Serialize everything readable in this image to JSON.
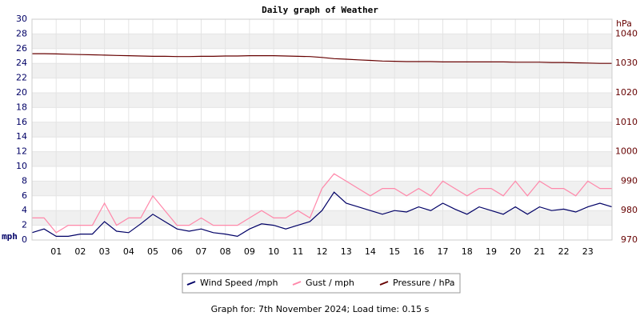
{
  "chart_data": {
    "type": "line",
    "title": "Daily graph of Weather",
    "y_label": "mph",
    "y2_label": "hPa",
    "footer": "Graph for: 7th November 2024; Load time: 0.15 s",
    "xlim": [
      0,
      24
    ],
    "xticks": [
      {
        "value": 1,
        "label": "01"
      },
      {
        "value": 2,
        "label": "02"
      },
      {
        "value": 3,
        "label": "03"
      },
      {
        "value": 4,
        "label": "04"
      },
      {
        "value": 5,
        "label": "05"
      },
      {
        "value": 6,
        "label": "06"
      },
      {
        "value": 7,
        "label": "07"
      },
      {
        "value": 8,
        "label": "08"
      },
      {
        "value": 9,
        "label": "09"
      },
      {
        "value": 10,
        "label": "10"
      },
      {
        "value": 11,
        "label": "11"
      },
      {
        "value": 12,
        "label": "12"
      },
      {
        "value": 13,
        "label": "13"
      },
      {
        "value": 14,
        "label": "14"
      },
      {
        "value": 15,
        "label": "15"
      },
      {
        "value": 16,
        "label": "16"
      },
      {
        "value": 17,
        "label": "17"
      },
      {
        "value": 18,
        "label": "18"
      },
      {
        "value": 19,
        "label": "19"
      },
      {
        "value": 20,
        "label": "20"
      },
      {
        "value": 21,
        "label": "21"
      },
      {
        "value": 22,
        "label": "22"
      },
      {
        "value": 23,
        "label": "23"
      }
    ],
    "ylim": [
      0,
      30
    ],
    "yticks": [
      0,
      2,
      4,
      6,
      8,
      10,
      12,
      14,
      16,
      18,
      20,
      22,
      24,
      26,
      28,
      30
    ],
    "y2lim": [
      970,
      1045
    ],
    "y2ticks": [
      970,
      980,
      990,
      1000,
      1010,
      1020,
      1030,
      1040
    ],
    "grid": true,
    "x": [
      0,
      0.5,
      1,
      1.5,
      2,
      2.5,
      3,
      3.5,
      4,
      4.5,
      5,
      5.5,
      6,
      6.5,
      7,
      7.5,
      8,
      8.5,
      9,
      9.5,
      10,
      10.5,
      11,
      11.5,
      12,
      12.5,
      13,
      13.5,
      14,
      14.5,
      15,
      15.5,
      16,
      16.5,
      17,
      17.5,
      18,
      18.5,
      19,
      19.5,
      20,
      20.5,
      21,
      21.5,
      22,
      22.5,
      23,
      23.5,
      24
    ],
    "series": [
      {
        "name": "Wind Speed /mph",
        "color": "#000066",
        "values": [
          1,
          1.5,
          0.5,
          0.5,
          0.8,
          0.8,
          2.5,
          1.2,
          1,
          2.2,
          3.5,
          2.5,
          1.5,
          1.2,
          1.5,
          1,
          0.8,
          0.5,
          1.5,
          2.2,
          2,
          1.5,
          2,
          2.5,
          4,
          6.5,
          5,
          4.5,
          4,
          3.5,
          4,
          3.8,
          4.5,
          4,
          5,
          4.2,
          3.5,
          4.5,
          4,
          3.5,
          4.5,
          3.5,
          4.5,
          4,
          4.2,
          3.8,
          4.5,
          5,
          4.5
        ]
      },
      {
        "name": "Gust / mph",
        "color": "#ff88aa",
        "values": [
          3,
          3,
          1,
          2,
          2,
          2,
          5,
          2,
          3,
          3,
          6,
          4,
          2,
          2,
          3,
          2,
          2,
          2,
          3,
          4,
          3,
          3,
          4,
          3,
          7,
          9,
          8,
          7,
          6,
          7,
          7,
          6,
          7,
          6,
          8,
          7,
          6,
          7,
          7,
          6,
          8,
          6,
          8,
          7,
          7,
          6,
          8,
          7,
          7
        ]
      },
      {
        "name": "Pressure / hPa",
        "color": "#660000",
        "axis": "y2",
        "values": [
          1033.3,
          1033.3,
          1033.2,
          1033.1,
          1033,
          1032.9,
          1032.8,
          1032.7,
          1032.6,
          1032.5,
          1032.4,
          1032.4,
          1032.3,
          1032.3,
          1032.4,
          1032.4,
          1032.5,
          1032.5,
          1032.6,
          1032.6,
          1032.6,
          1032.5,
          1032.4,
          1032.3,
          1032,
          1031.6,
          1031.4,
          1031.2,
          1031,
          1030.8,
          1030.7,
          1030.6,
          1030.6,
          1030.6,
          1030.5,
          1030.5,
          1030.5,
          1030.5,
          1030.5,
          1030.5,
          1030.4,
          1030.4,
          1030.4,
          1030.3,
          1030.3,
          1030.2,
          1030.1,
          1030,
          1030
        ]
      }
    ]
  }
}
